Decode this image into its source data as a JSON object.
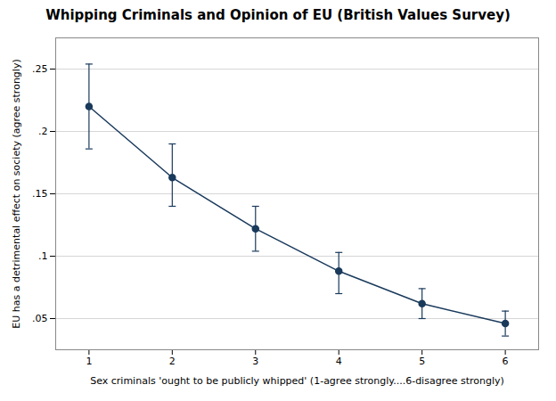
{
  "chart_data": {
    "type": "line",
    "title": "Whipping Criminals and Opinion of EU (British Values Survey)",
    "xlabel": "Sex criminals 'ought to be publicly whipped' (1-agree strongly....6-disagree strongly)",
    "ylabel": "EU has a detrimental effect on society (agree strongly)",
    "x": [
      1,
      2,
      3,
      4,
      5,
      6
    ],
    "values": [
      0.22,
      0.163,
      0.122,
      0.088,
      0.062,
      0.046
    ],
    "yerr_lower": [
      0.034,
      0.023,
      0.018,
      0.018,
      0.012,
      0.01
    ],
    "yerr_upper": [
      0.034,
      0.027,
      0.018,
      0.015,
      0.012,
      0.01
    ],
    "xlim": [
      0.6,
      6.4
    ],
    "xticks": [
      1,
      2,
      3,
      4,
      5,
      6
    ],
    "ylim": [
      0.025,
      0.275
    ],
    "yticks": [
      {
        "value": 0.05,
        "label": ".05"
      },
      {
        "value": 0.1,
        "label": ".1"
      },
      {
        "value": 0.15,
        "label": ".15"
      },
      {
        "value": 0.2,
        "label": ".2"
      },
      {
        "value": 0.25,
        "label": ".25"
      }
    ],
    "color": "#1a3a5c",
    "marker": "circle",
    "line_style": "solid",
    "grid": true
  }
}
